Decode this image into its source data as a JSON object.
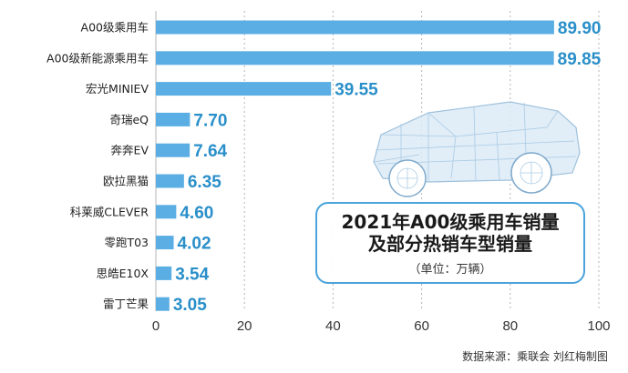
{
  "chart_data": {
    "type": "bar",
    "orientation": "horizontal",
    "title": "2021年A00级乘用车销量及部分热销车型销量",
    "title_lines": [
      "2021年A00级乘用车销量",
      "及部分热销车型销量"
    ],
    "unit": "（单位：万辆）",
    "categories": [
      "A00级乘用车",
      "A00级新能源乘用车",
      "宏光MINIEV",
      "奇瑞eQ",
      "奔奔EV",
      "欧拉黑猫",
      "科莱威CLEVER",
      "零跑T03",
      "思皓E10X",
      "雷丁芒果"
    ],
    "values": [
      89.9,
      89.85,
      39.55,
      7.7,
      7.64,
      6.35,
      4.6,
      4.02,
      3.54,
      3.05
    ],
    "value_labels": [
      "89.90",
      "89.85",
      "39.55",
      "7.70",
      "7.64",
      "6.35",
      "4.60",
      "4.02",
      "3.54",
      "3.05"
    ],
    "xlim": [
      0,
      100
    ],
    "xticks": [
      "0",
      "20",
      "40",
      "60",
      "80",
      "100"
    ],
    "grid": true,
    "xlabel": "",
    "ylabel": ""
  },
  "source_text": "数据来源：乘联会  刘红梅制图",
  "colors": {
    "bar": "#5aaee3",
    "value": "#2a8fc9",
    "grid": "#b5b5b5",
    "border": "#4aa3db"
  }
}
